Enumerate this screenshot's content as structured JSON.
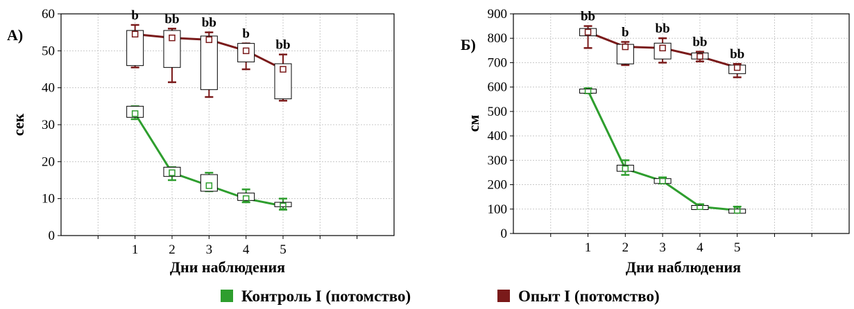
{
  "chart_data": [
    {
      "type": "box",
      "panel_label": "А)",
      "xlabel": "Дни наблюдения",
      "ylabel": "сек",
      "ylim": [
        0,
        60
      ],
      "yticks": [
        "0",
        "10",
        "20",
        "30",
        "40",
        "50",
        "60"
      ],
      "categories": [
        "1",
        "2",
        "3",
        "4",
        "5"
      ],
      "xlim": [
        -1,
        8
      ],
      "grid": true,
      "significance": [
        "b",
        "bb",
        "bb",
        "b",
        "bb"
      ],
      "series": [
        {
          "name": "Контроль I (потомство)",
          "color": "#2e9e2e",
          "median": [
            33,
            17,
            13.5,
            10,
            8
          ],
          "q1": [
            32,
            16,
            12,
            9.5,
            7.8
          ],
          "q3": [
            35,
            18.5,
            16.5,
            11.5,
            9
          ],
          "min": [
            31.5,
            15,
            12,
            9,
            7
          ],
          "max": [
            35,
            18.5,
            17,
            12.5,
            10
          ]
        },
        {
          "name": "Опыт I (потомство)",
          "color": "#7a1a1a",
          "median": [
            54.5,
            53.5,
            53,
            50,
            45
          ],
          "q1": [
            46,
            45.5,
            39.5,
            47,
            37
          ],
          "q3": [
            55.5,
            55.5,
            54,
            52,
            46.5
          ],
          "min": [
            45.5,
            41.5,
            37.5,
            45,
            36.5
          ],
          "max": [
            57,
            56,
            55,
            52,
            49
          ]
        }
      ]
    },
    {
      "type": "box",
      "panel_label": "Б)",
      "xlabel": "Дни наблюдения",
      "ylabel": "см",
      "ylim": [
        0,
        900
      ],
      "yticks": [
        "0",
        "100",
        "200",
        "300",
        "400",
        "500",
        "600",
        "700",
        "800",
        "900"
      ],
      "categories": [
        "1",
        "2",
        "3",
        "4",
        "5"
      ],
      "xlim": [
        -1,
        8
      ],
      "grid": true,
      "significance": [
        "bb",
        "b",
        "bb",
        "bb",
        "bb"
      ],
      "series": [
        {
          "name": "Контроль I (потомство)",
          "color": "#2e9e2e",
          "median": [
            585,
            265,
            215,
            110,
            95
          ],
          "q1": [
            578,
            255,
            205,
            102,
            88
          ],
          "q3": [
            592,
            280,
            225,
            115,
            100
          ],
          "min": [
            575,
            240,
            205,
            100,
            85
          ],
          "max": [
            595,
            300,
            230,
            120,
            110
          ]
        },
        {
          "name": "Опыт I (потомство)",
          "color": "#7a1a1a",
          "median": [
            825,
            765,
            760,
            725,
            680
          ],
          "q1": [
            810,
            695,
            715,
            715,
            655
          ],
          "q3": [
            840,
            775,
            780,
            740,
            690
          ],
          "min": [
            760,
            690,
            700,
            705,
            640
          ],
          "max": [
            850,
            785,
            800,
            745,
            695
          ]
        }
      ]
    }
  ],
  "legend": [
    {
      "label": "Контроль I (потомство)",
      "color": "#2e9e2e"
    },
    {
      "label": "Опыт I (потомство)",
      "color": "#7a1a1a"
    }
  ]
}
